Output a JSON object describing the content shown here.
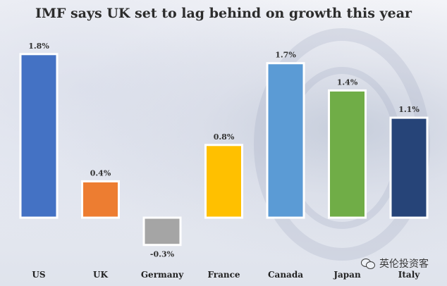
{
  "chart_data": {
    "type": "bar",
    "title": "IMF says UK set to lag behind on growth this year",
    "categories": [
      "US",
      "UK",
      "Germany",
      "France",
      "Canada",
      "Japan",
      "Italy"
    ],
    "values": [
      1.8,
      0.4,
      -0.3,
      0.8,
      1.7,
      1.4,
      1.1
    ],
    "value_labels": [
      "1.8%",
      "0.4%",
      "-0.3%",
      "0.8%",
      "1.7%",
      "1.4%",
      "1.1%"
    ],
    "colors": [
      "#4472c4",
      "#ed7d31",
      "#a5a5a5",
      "#ffc000",
      "#5b9bd5",
      "#70ad47",
      "#264478"
    ],
    "ylim": [
      -0.3,
      1.8
    ],
    "grid": false,
    "xlabel": "",
    "ylabel": ""
  },
  "watermark": {
    "text": "英伦投资客",
    "icon": "wechat-icon"
  }
}
